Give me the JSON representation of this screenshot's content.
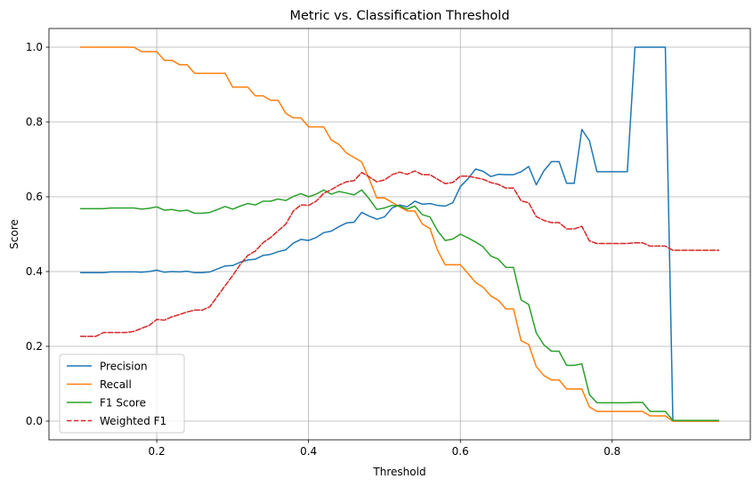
{
  "chart_data": {
    "type": "line",
    "title": "Metric vs. Classification Threshold",
    "xlabel": "Threshold",
    "ylabel": "Score",
    "xlim": [
      0.058,
      0.982
    ],
    "ylim": [
      -0.05,
      1.05
    ],
    "xticks": [
      0.2,
      0.4,
      0.6,
      0.8
    ],
    "xtick_labels": [
      "0.2",
      "0.4",
      "0.6",
      "0.8"
    ],
    "yticks": [
      0.0,
      0.2,
      0.4,
      0.6,
      0.8,
      1.0
    ],
    "ytick_labels": [
      "0.0",
      "0.2",
      "0.4",
      "0.6",
      "0.8",
      "1.0"
    ],
    "grid": true,
    "legend_position": "lower-left",
    "x": [
      0.1,
      0.11,
      0.12,
      0.13,
      0.14,
      0.15,
      0.16,
      0.17,
      0.18,
      0.19,
      0.2,
      0.21,
      0.22,
      0.23,
      0.24,
      0.25,
      0.26,
      0.27,
      0.28,
      0.29,
      0.3,
      0.31,
      0.32,
      0.33,
      0.34,
      0.35,
      0.36,
      0.37,
      0.38,
      0.39,
      0.4,
      0.41,
      0.42,
      0.43,
      0.44,
      0.45,
      0.46,
      0.47,
      0.48,
      0.49,
      0.5,
      0.51,
      0.52,
      0.53,
      0.54,
      0.55,
      0.56,
      0.57,
      0.58,
      0.59,
      0.6,
      0.61,
      0.62,
      0.63,
      0.64,
      0.65,
      0.66,
      0.67,
      0.68,
      0.69,
      0.7,
      0.71,
      0.72,
      0.73,
      0.74,
      0.75,
      0.76,
      0.77,
      0.78,
      0.79,
      0.8,
      0.81,
      0.82,
      0.83,
      0.84,
      0.85,
      0.86,
      0.87,
      0.88,
      0.89,
      0.9,
      0.91,
      0.92,
      0.93,
      0.94
    ],
    "series": [
      {
        "name": "Precision",
        "color": "#1f77b4",
        "dashed": false,
        "values": [
          0.397,
          0.397,
          0.397,
          0.397,
          0.399,
          0.399,
          0.399,
          0.399,
          0.398,
          0.4,
          0.404,
          0.398,
          0.4,
          0.399,
          0.401,
          0.397,
          0.397,
          0.399,
          0.407,
          0.415,
          0.416,
          0.425,
          0.431,
          0.433,
          0.443,
          0.446,
          0.453,
          0.458,
          0.476,
          0.486,
          0.483,
          0.491,
          0.504,
          0.508,
          0.52,
          0.53,
          0.532,
          0.558,
          0.548,
          0.54,
          0.546,
          0.57,
          0.578,
          0.573,
          0.588,
          0.58,
          0.582,
          0.577,
          0.575,
          0.584,
          0.627,
          0.648,
          0.674,
          0.668,
          0.654,
          0.66,
          0.659,
          0.659,
          0.667,
          0.681,
          0.632,
          0.669,
          0.694,
          0.694,
          0.636,
          0.636,
          0.78,
          0.75,
          0.667,
          0.667,
          0.667,
          0.667,
          0.667,
          1.0,
          1.0,
          1.0,
          1.0,
          1.0,
          0.0,
          0.0,
          0.0,
          0.0,
          0.0,
          0.0,
          0.0
        ]
      },
      {
        "name": "Recall",
        "color": "#ff7f0e",
        "dashed": false,
        "values": [
          1.0,
          1.0,
          1.0,
          1.0,
          1.0,
          1.0,
          1.0,
          1.0,
          0.988,
          0.988,
          0.988,
          0.965,
          0.965,
          0.953,
          0.953,
          0.93,
          0.93,
          0.93,
          0.93,
          0.93,
          0.893,
          0.893,
          0.893,
          0.87,
          0.87,
          0.858,
          0.858,
          0.823,
          0.811,
          0.811,
          0.787,
          0.787,
          0.787,
          0.752,
          0.74,
          0.717,
          0.705,
          0.693,
          0.647,
          0.597,
          0.597,
          0.585,
          0.573,
          0.562,
          0.562,
          0.527,
          0.515,
          0.457,
          0.418,
          0.418,
          0.418,
          0.395,
          0.371,
          0.358,
          0.335,
          0.323,
          0.3,
          0.3,
          0.215,
          0.205,
          0.146,
          0.122,
          0.11,
          0.11,
          0.086,
          0.086,
          0.086,
          0.038,
          0.026,
          0.026,
          0.026,
          0.026,
          0.026,
          0.026,
          0.026,
          0.014,
          0.014,
          0.014,
          0.0,
          0.0,
          0.0,
          0.0,
          0.0,
          0.0,
          0.0
        ]
      },
      {
        "name": "F1 Score",
        "color": "#2ca02c",
        "dashed": false,
        "values": [
          0.568,
          0.568,
          0.568,
          0.568,
          0.57,
          0.57,
          0.57,
          0.57,
          0.567,
          0.569,
          0.573,
          0.564,
          0.566,
          0.562,
          0.564,
          0.556,
          0.556,
          0.558,
          0.566,
          0.574,
          0.567,
          0.575,
          0.582,
          0.578,
          0.588,
          0.588,
          0.594,
          0.59,
          0.601,
          0.608,
          0.6,
          0.607,
          0.618,
          0.607,
          0.614,
          0.61,
          0.605,
          0.618,
          0.594,
          0.566,
          0.57,
          0.577,
          0.575,
          0.567,
          0.575,
          0.552,
          0.546,
          0.509,
          0.483,
          0.487,
          0.5,
          0.49,
          0.479,
          0.466,
          0.442,
          0.433,
          0.411,
          0.411,
          0.324,
          0.312,
          0.236,
          0.204,
          0.187,
          0.187,
          0.149,
          0.149,
          0.153,
          0.071,
          0.049,
          0.049,
          0.049,
          0.049,
          0.049,
          0.05,
          0.05,
          0.026,
          0.026,
          0.026,
          0.002,
          0.002,
          0.002,
          0.002,
          0.002,
          0.002,
          0.002
        ]
      },
      {
        "name": "Weighted F1",
        "color": "#d62728",
        "dashed": true,
        "values": [
          0.227,
          0.227,
          0.227,
          0.237,
          0.237,
          0.237,
          0.237,
          0.24,
          0.248,
          0.256,
          0.272,
          0.27,
          0.279,
          0.285,
          0.292,
          0.297,
          0.297,
          0.306,
          0.334,
          0.362,
          0.389,
          0.419,
          0.443,
          0.455,
          0.477,
          0.491,
          0.509,
          0.527,
          0.562,
          0.578,
          0.577,
          0.588,
          0.609,
          0.619,
          0.631,
          0.64,
          0.643,
          0.665,
          0.653,
          0.64,
          0.645,
          0.659,
          0.666,
          0.66,
          0.669,
          0.659,
          0.659,
          0.647,
          0.635,
          0.638,
          0.655,
          0.655,
          0.651,
          0.647,
          0.638,
          0.633,
          0.623,
          0.623,
          0.589,
          0.584,
          0.547,
          0.537,
          0.531,
          0.531,
          0.514,
          0.514,
          0.521,
          0.482,
          0.475,
          0.475,
          0.475,
          0.475,
          0.475,
          0.477,
          0.477,
          0.468,
          0.468,
          0.468,
          0.457,
          0.457,
          0.457,
          0.457,
          0.457,
          0.457,
          0.457
        ]
      }
    ]
  }
}
